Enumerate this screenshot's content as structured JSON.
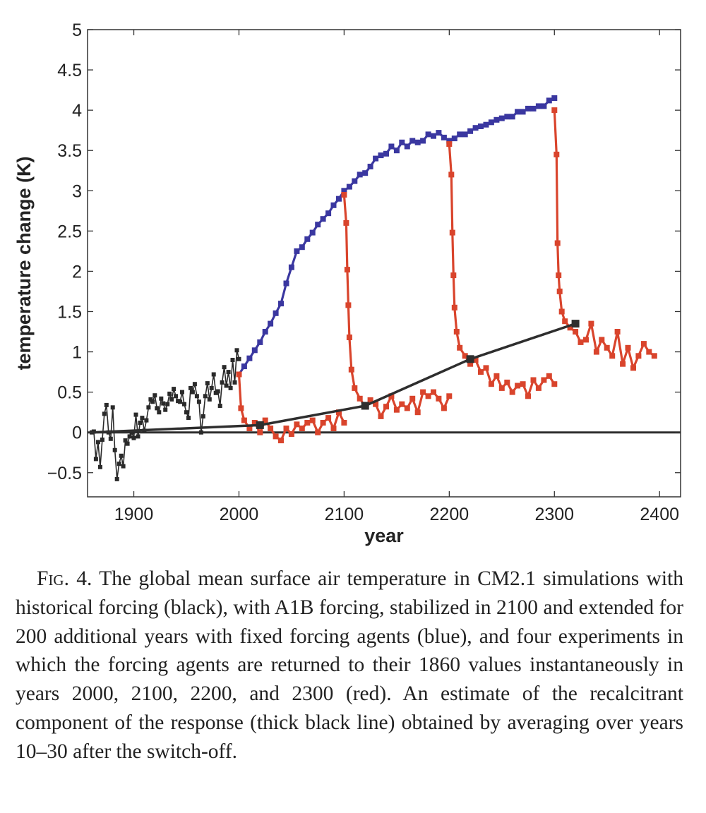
{
  "chart_data": {
    "type": "line",
    "xlabel": "year",
    "ylabel": "temperature change (K)",
    "xlim": [
      1856,
      2420
    ],
    "ylim": [
      -0.8,
      5
    ],
    "xticks": [
      1900,
      2000,
      2100,
      2200,
      2300,
      2400
    ],
    "yticks": [
      -0.5,
      0,
      0.5,
      1,
      1.5,
      2,
      2.5,
      3,
      3.5,
      4,
      4.5,
      5
    ],
    "ytick_labels": [
      "−0.5",
      "0",
      "0.5",
      "1",
      "1.5",
      "2",
      "2.5",
      "3",
      "3.5",
      "4",
      "4.5",
      "5"
    ],
    "grid": false,
    "legend": "none",
    "colors": {
      "historical": "#2a2a2a",
      "a1b": "#3a37a0",
      "switchoff": "#d9442c",
      "recalcitrant": "#2e2e2e"
    },
    "series": [
      {
        "key": "historical",
        "style": "thin-markers",
        "x": [
          1860,
          1862,
          1864,
          1866,
          1868,
          1870,
          1872,
          1874,
          1876,
          1878,
          1880,
          1882,
          1884,
          1886,
          1888,
          1890,
          1892,
          1894,
          1896,
          1898,
          1900,
          1902,
          1904,
          1906,
          1908,
          1910,
          1912,
          1914,
          1916,
          1918,
          1920,
          1922,
          1924,
          1926,
          1928,
          1930,
          1932,
          1934,
          1936,
          1938,
          1940,
          1942,
          1944,
          1946,
          1948,
          1950,
          1952,
          1954,
          1956,
          1958,
          1960,
          1962,
          1964,
          1966,
          1968,
          1970,
          1972,
          1974,
          1976,
          1978,
          1980,
          1982,
          1984,
          1986,
          1988,
          1990,
          1992,
          1994,
          1996,
          1998,
          2000
        ],
        "y": [
          0.0,
          0.01,
          -0.33,
          -0.12,
          -0.43,
          -0.09,
          0.23,
          0.34,
          0.0,
          -0.08,
          0.31,
          -0.22,
          -0.58,
          -0.39,
          -0.29,
          -0.42,
          -0.1,
          -0.14,
          -0.05,
          0.0,
          -0.07,
          0.22,
          -0.05,
          0.12,
          0.18,
          0.02,
          0.15,
          0.31,
          0.41,
          0.38,
          0.46,
          0.3,
          0.25,
          0.42,
          0.36,
          0.28,
          0.35,
          0.48,
          0.41,
          0.54,
          0.45,
          0.39,
          0.38,
          0.5,
          0.35,
          0.25,
          0.18,
          0.55,
          0.5,
          0.6,
          0.45,
          0.38,
          0.0,
          0.2,
          0.45,
          0.61,
          0.41,
          0.55,
          0.72,
          0.49,
          0.51,
          0.33,
          0.62,
          0.81,
          0.58,
          0.75,
          0.55,
          0.9,
          0.62,
          1.02,
          0.91
        ]
      },
      {
        "key": "a1b",
        "style": "thick-markers",
        "x": [
          2000,
          2005,
          2010,
          2015,
          2020,
          2025,
          2030,
          2035,
          2040,
          2045,
          2050,
          2055,
          2060,
          2065,
          2070,
          2075,
          2080,
          2085,
          2090,
          2095,
          2100,
          2105,
          2110,
          2115,
          2120,
          2125,
          2130,
          2135,
          2140,
          2145,
          2150,
          2155,
          2160,
          2165,
          2170,
          2175,
          2180,
          2185,
          2190,
          2195,
          2200,
          2205,
          2210,
          2215,
          2220,
          2225,
          2230,
          2235,
          2240,
          2245,
          2250,
          2255,
          2260,
          2265,
          2270,
          2275,
          2280,
          2285,
          2290,
          2295,
          2300
        ],
        "y": [
          0.72,
          0.82,
          0.92,
          1.02,
          1.12,
          1.25,
          1.35,
          1.48,
          1.6,
          1.85,
          2.05,
          2.25,
          2.3,
          2.4,
          2.48,
          2.58,
          2.65,
          2.72,
          2.82,
          2.9,
          3.0,
          3.05,
          3.12,
          3.2,
          3.22,
          3.3,
          3.4,
          3.44,
          3.46,
          3.55,
          3.5,
          3.6,
          3.55,
          3.62,
          3.6,
          3.62,
          3.7,
          3.68,
          3.72,
          3.66,
          3.62,
          3.65,
          3.7,
          3.7,
          3.74,
          3.78,
          3.8,
          3.82,
          3.85,
          3.88,
          3.9,
          3.92,
          3.92,
          3.98,
          3.98,
          4.02,
          4.02,
          4.05,
          4.05,
          4.12,
          4.15
        ]
      },
      {
        "key": "switchoff-2000",
        "style": "thick-markers",
        "x": [
          2000,
          2002,
          2005,
          2010,
          2015,
          2020,
          2025,
          2030,
          2035,
          2040,
          2045,
          2050,
          2055,
          2060,
          2065,
          2070,
          2075,
          2080,
          2085,
          2090,
          2095,
          2100
        ],
        "y": [
          0.72,
          0.3,
          0.15,
          0.05,
          0.12,
          0.0,
          0.15,
          0.05,
          -0.05,
          -0.1,
          0.05,
          -0.02,
          0.1,
          0.05,
          0.12,
          0.15,
          0.0,
          0.12,
          0.18,
          0.05,
          0.25,
          0.12
        ]
      },
      {
        "key": "switchoff-2100",
        "style": "thick-markers",
        "x": [
          2100,
          2102,
          2103,
          2104,
          2105,
          2107,
          2110,
          2115,
          2120,
          2125,
          2130,
          2135,
          2140,
          2145,
          2150,
          2155,
          2160,
          2165,
          2170,
          2175,
          2180,
          2185,
          2190,
          2195,
          2200
        ],
        "y": [
          2.95,
          2.6,
          2.02,
          1.58,
          1.18,
          0.78,
          0.55,
          0.42,
          0.32,
          0.4,
          0.35,
          0.2,
          0.32,
          0.45,
          0.28,
          0.35,
          0.3,
          0.42,
          0.25,
          0.5,
          0.45,
          0.5,
          0.42,
          0.3,
          0.45
        ]
      },
      {
        "key": "switchoff-2200",
        "style": "thick-markers",
        "x": [
          2200,
          2202,
          2203,
          2204,
          2205,
          2207,
          2210,
          2215,
          2220,
          2225,
          2230,
          2235,
          2240,
          2245,
          2250,
          2255,
          2260,
          2265,
          2270,
          2275,
          2280,
          2285,
          2290,
          2295,
          2300
        ],
        "y": [
          3.58,
          3.2,
          2.48,
          1.95,
          1.55,
          1.25,
          1.05,
          0.95,
          0.85,
          0.9,
          0.75,
          0.8,
          0.6,
          0.7,
          0.55,
          0.62,
          0.5,
          0.58,
          0.6,
          0.45,
          0.65,
          0.55,
          0.65,
          0.7,
          0.6
        ]
      },
      {
        "key": "switchoff-2300",
        "style": "thick-markers",
        "x": [
          2300,
          2302,
          2303,
          2304,
          2305,
          2307,
          2310,
          2315,
          2320,
          2325,
          2330,
          2335,
          2340,
          2345,
          2350,
          2355,
          2360,
          2365,
          2370,
          2375,
          2380,
          2385,
          2390,
          2395
        ],
        "y": [
          4.0,
          3.45,
          2.35,
          1.95,
          1.75,
          1.5,
          1.38,
          1.3,
          1.25,
          1.12,
          1.15,
          1.35,
          1.0,
          1.15,
          1.05,
          0.95,
          1.25,
          0.85,
          1.05,
          0.8,
          0.95,
          1.1,
          1.0,
          0.95
        ]
      },
      {
        "key": "recalcitrant",
        "style": "thick-line",
        "x": [
          1860,
          2020,
          2120,
          2220,
          2320
        ],
        "y": [
          0.0,
          0.09,
          0.33,
          0.91,
          1.35
        ]
      },
      {
        "key": "zero-line",
        "style": "plain-line",
        "x": [
          1856,
          2420
        ],
        "y": [
          0,
          0
        ]
      }
    ]
  },
  "caption": {
    "label": "Fig. 4.",
    "text": "The global mean surface air temperature in CM2.1 simulations with historical forcing (black), with A1B forcing, stabilized in 2100 and extended for 200 additional years with fixed forcing agents (blue), and four experiments in which the forcing agents are returned to their 1860 values instantaneously in years 2000, 2100, 2200, and 2300 (red). An estimate of the recalcitrant component of the response (thick black line) obtained by averaging over years 10–30 after the switch-off."
  }
}
